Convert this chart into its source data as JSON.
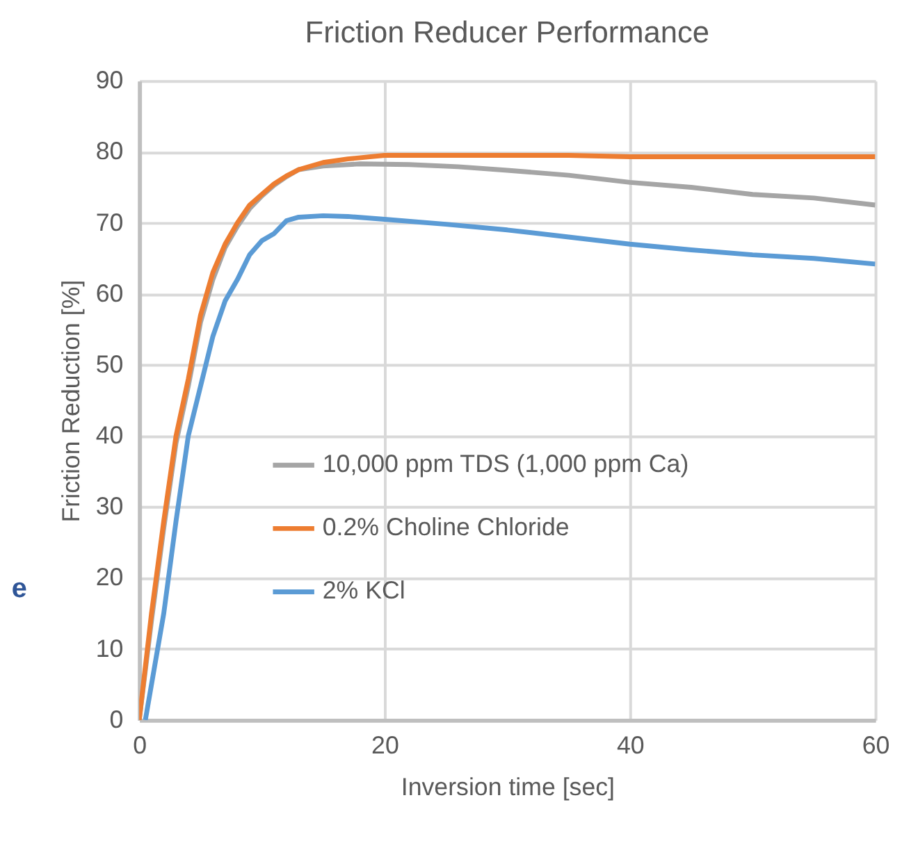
{
  "chart_data": {
    "type": "line",
    "title": "Friction Reducer Performance",
    "xlabel": "Inversion time [sec]",
    "ylabel": "Friction Reduction [%]",
    "xlim": [
      0,
      60
    ],
    "xticks": [
      0,
      20,
      40,
      60
    ],
    "ylim": [
      0,
      90
    ],
    "yticks": [
      0,
      10,
      20,
      30,
      40,
      50,
      60,
      70,
      80,
      90
    ],
    "grid": true,
    "legend": "bottom",
    "marker": "none",
    "line_style": "solid",
    "annotations": [
      "e"
    ],
    "series": [
      {
        "name": "10,000 ppm TDS  (1,000 ppm Ca)",
        "color": "#a5a5a5",
        "x": [
          0,
          1,
          2,
          3,
          4,
          5,
          6,
          7,
          8,
          9,
          10,
          11,
          12,
          13,
          15,
          18,
          22,
          26,
          30,
          35,
          40,
          45,
          50,
          55,
          60
        ],
        "values": [
          0,
          14,
          27,
          39,
          47,
          56,
          62,
          66.5,
          69.5,
          72,
          73.8,
          75.3,
          76.5,
          77.5,
          78,
          78.3,
          78.2,
          77.9,
          77.4,
          76.7,
          75.7,
          75,
          74,
          73.5,
          72.5
        ]
      },
      {
        "name": "0.2% Choline Chloride",
        "color": "#ed7d31",
        "x": [
          0,
          1,
          2,
          3,
          4,
          5,
          6,
          7,
          8,
          9,
          10,
          11,
          12,
          13,
          15,
          17,
          20,
          25,
          30,
          35,
          40,
          45,
          50,
          55,
          60
        ],
        "values": [
          0,
          15,
          28,
          40,
          48,
          57,
          63,
          67,
          70,
          72.5,
          74,
          75.5,
          76.6,
          77.5,
          78.5,
          79,
          79.5,
          79.5,
          79.5,
          79.5,
          79.3,
          79.3,
          79.3,
          79.3,
          79.3
        ]
      },
      {
        "name": "2% KCl",
        "color": "#5b9bd5",
        "x": [
          0.5,
          2,
          3,
          4,
          5,
          6,
          7,
          8,
          9,
          10,
          11,
          12,
          13,
          15,
          17,
          20,
          25,
          30,
          35,
          40,
          45,
          50,
          55,
          60
        ],
        "values": [
          0,
          15,
          28,
          40,
          47,
          54,
          59,
          62,
          65.5,
          67.5,
          68.5,
          70.3,
          70.8,
          71,
          70.9,
          70.5,
          69.8,
          69,
          68,
          67,
          66.2,
          65.5,
          65,
          64.2
        ]
      }
    ]
  }
}
